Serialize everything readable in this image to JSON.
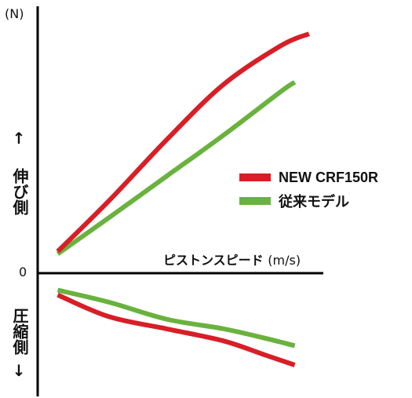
{
  "chart_data": {
    "type": "line",
    "title": "",
    "xlabel": "ピストンスピード",
    "xlabel_unit": "(m/s)",
    "ylabel_unit": "(N)",
    "zero_label": "0",
    "ylabel_positive": "伸び側",
    "ylabel_negative": "圧縮側",
    "arrow_up": "↑",
    "arrow_down": "↓",
    "xlim": [
      0,
      10
    ],
    "ylim": [
      -5,
      10
    ],
    "grid": false,
    "legend_position": "right",
    "series": [
      {
        "name": "NEW CRF150R",
        "color": "#d81e26",
        "extension": {
          "x": [
            0.7,
            2.5,
            4.5,
            6.5,
            8.5,
            9.5
          ],
          "y": [
            0.9,
            3.0,
            5.5,
            7.8,
            9.4,
            9.9
          ]
        },
        "compression": {
          "x": [
            0.7,
            2.5,
            4.5,
            6.5,
            8.0,
            9.0
          ],
          "y": [
            -0.9,
            -1.8,
            -2.3,
            -2.8,
            -3.4,
            -3.8
          ]
        }
      },
      {
        "name": "従来モデル",
        "color": "#6ab23e",
        "extension": {
          "x": [
            0.7,
            2.5,
            4.5,
            6.5,
            8.5,
            9.0
          ],
          "y": [
            0.8,
            2.3,
            4.0,
            5.7,
            7.5,
            7.9
          ]
        },
        "compression": {
          "x": [
            0.7,
            2.5,
            4.5,
            6.5,
            8.0,
            9.0
          ],
          "y": [
            -0.7,
            -1.2,
            -1.9,
            -2.3,
            -2.7,
            -3.0
          ]
        }
      }
    ]
  }
}
